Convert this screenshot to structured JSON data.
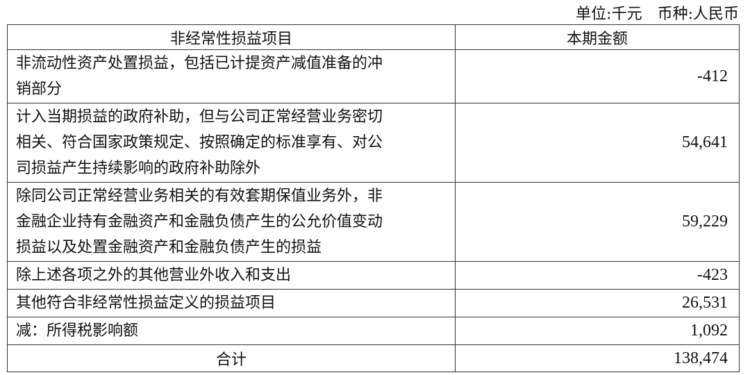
{
  "unit_line": "单位:千元　币种:人民币",
  "headers": [
    "非经常性损益项目",
    "本期金额"
  ],
  "rows": [
    {
      "lines": [
        "非流动性资产处置损益，包括已计提资产减值准备的冲",
        "销部分"
      ],
      "value": "-412"
    },
    {
      "lines": [
        "计入当期损益的政府补助，但与公司正常经营业务密切",
        "相关、符合国家政策规定、按照确定的标准享有、对公",
        "司损益产生持续影响的政府补助除外"
      ],
      "value": "54,641"
    },
    {
      "lines": [
        "除同公司正常经营业务相关的有效套期保值业务外，非",
        "金融企业持有金融资产和金融负债产生的公允价值变动",
        "损益以及处置金融资产和金融负债产生的损益"
      ],
      "value": "59,229"
    },
    {
      "lines": [
        "除上述各项之外的其他营业外收入和支出"
      ],
      "value": "-423"
    },
    {
      "lines": [
        "其他符合非经常性损益定义的损益项目"
      ],
      "value": "26,531"
    },
    {
      "lines": [
        "减：所得税影响额"
      ],
      "value": "1,092"
    }
  ],
  "total": {
    "label": "合计",
    "value": "138,474"
  }
}
